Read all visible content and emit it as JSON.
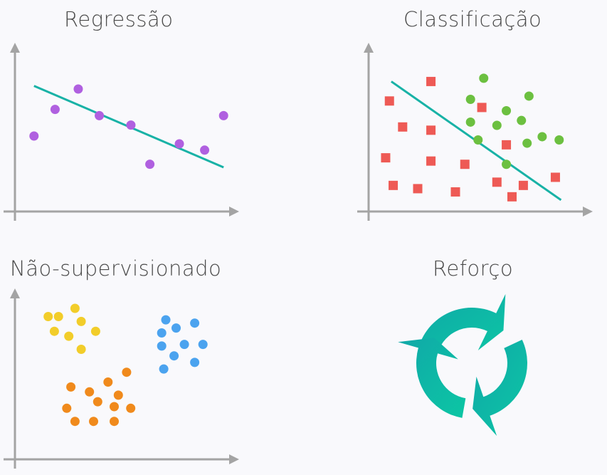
{
  "panels": {
    "regression": {
      "title": "Regressão",
      "color_point": "#b060e0",
      "color_line": "#18b2a6",
      "points": [
        [
          0.5,
          4.5
        ],
        [
          1.5,
          6.2
        ],
        [
          2.6,
          7.5
        ],
        [
          3.6,
          5.8
        ],
        [
          5.1,
          5.2
        ],
        [
          6.0,
          2.7
        ],
        [
          7.4,
          4.0
        ],
        [
          8.6,
          3.6
        ],
        [
          9.5,
          5.8
        ]
      ],
      "line": [
        [
          0.5,
          7.7
        ],
        [
          9.5,
          2.5
        ]
      ]
    },
    "classification": {
      "title": "Classificação",
      "color_square": "#ee5a55",
      "color_circle": "#6cc040",
      "color_line": "#18b2a6",
      "squares": [
        [
          0.5,
          6.5
        ],
        [
          2.7,
          7.7
        ],
        [
          1.2,
          4.9
        ],
        [
          2.7,
          4.7
        ],
        [
          5.4,
          6.1
        ],
        [
          0.3,
          3.0
        ],
        [
          2.7,
          2.8
        ],
        [
          4.5,
          2.6
        ],
        [
          0.7,
          1.3
        ],
        [
          2.0,
          1.1
        ],
        [
          4.0,
          0.9
        ],
        [
          6.2,
          1.5
        ],
        [
          7.6,
          1.3
        ],
        [
          7.0,
          0.6
        ],
        [
          9.3,
          1.8
        ],
        [
          6.7,
          3.8
        ]
      ],
      "circles": [
        [
          5.5,
          7.9
        ],
        [
          4.8,
          6.6
        ],
        [
          6.7,
          5.9
        ],
        [
          7.9,
          6.8
        ],
        [
          4.8,
          5.2
        ],
        [
          6.2,
          5.0
        ],
        [
          7.5,
          5.3
        ],
        [
          5.2,
          4.1
        ],
        [
          7.8,
          3.9
        ],
        [
          8.6,
          4.3
        ],
        [
          9.5,
          4.1
        ],
        [
          6.7,
          2.6
        ]
      ],
      "line": [
        [
          0.6,
          7.7
        ],
        [
          9.6,
          0.4
        ]
      ]
    },
    "unsupervised": {
      "title": "Não-supervisionado",
      "clusters": [
        {
          "color": "#f2cd2a",
          "points": [
            [
              1.3,
              8.5
            ],
            [
              1.8,
              8.5
            ],
            [
              2.6,
              9.0
            ],
            [
              2.9,
              8.2
            ],
            [
              1.6,
              7.6
            ],
            [
              2.3,
              7.3
            ],
            [
              3.6,
              7.6
            ],
            [
              2.9,
              6.5
            ]
          ]
        },
        {
          "color": "#4ba3ef",
          "points": [
            [
              7.0,
              8.3
            ],
            [
              7.5,
              7.8
            ],
            [
              8.4,
              8.1
            ],
            [
              6.8,
              7.5
            ],
            [
              6.8,
              6.7
            ],
            [
              7.9,
              6.8
            ],
            [
              8.8,
              6.8
            ],
            [
              7.4,
              6.1
            ],
            [
              8.4,
              5.7
            ],
            [
              6.9,
              5.3
            ]
          ]
        },
        {
          "color": "#f08a1c",
          "points": [
            [
              5.1,
              5.1
            ],
            [
              4.2,
              4.5
            ],
            [
              2.4,
              4.2
            ],
            [
              3.3,
              3.9
            ],
            [
              4.7,
              3.7
            ],
            [
              3.7,
              3.3
            ],
            [
              4.5,
              3.0
            ],
            [
              2.2,
              2.9
            ],
            [
              5.3,
              2.9
            ],
            [
              2.6,
              2.1
            ],
            [
              3.5,
              2.1
            ],
            [
              4.5,
              2.1
            ]
          ]
        }
      ]
    },
    "reinforcement": {
      "title": "Reforço",
      "color_start": "#10a8a8",
      "color_end": "#0cc6a4"
    }
  },
  "axis_color": "#a4a4a4"
}
